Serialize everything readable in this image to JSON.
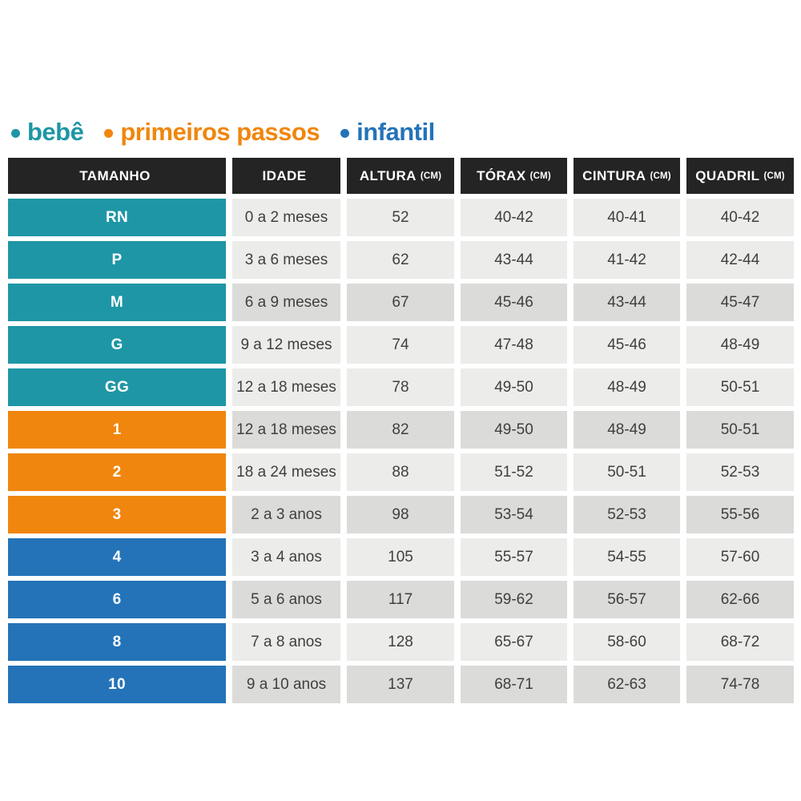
{
  "chart_data": {
    "type": "table",
    "legend": [
      {
        "label": "bebê",
        "group": "bebe"
      },
      {
        "label": "primeiros passos",
        "group": "primeiros_passos"
      },
      {
        "label": "infantil",
        "group": "infantil"
      }
    ],
    "columns": [
      {
        "label": "TAMANHO",
        "unit": ""
      },
      {
        "label": "IDADE",
        "unit": ""
      },
      {
        "label": "ALTURA",
        "unit": "(CM)"
      },
      {
        "label": "TÓRAX",
        "unit": "(CM)"
      },
      {
        "label": "CINTURA",
        "unit": "(CM)"
      },
      {
        "label": "QUADRIL",
        "unit": "(CM)"
      }
    ],
    "rows": [
      {
        "tamanho": "RN",
        "idade": "0 a 2 meses",
        "altura": "52",
        "torax": "40-42",
        "cintura": "40-41",
        "quadril": "40-42",
        "group": "bebe",
        "shade": "light"
      },
      {
        "tamanho": "P",
        "idade": "3 a 6 meses",
        "altura": "62",
        "torax": "43-44",
        "cintura": "41-42",
        "quadril": "42-44",
        "group": "bebe",
        "shade": "light"
      },
      {
        "tamanho": "M",
        "idade": "6 a 9 meses",
        "altura": "67",
        "torax": "45-46",
        "cintura": "43-44",
        "quadril": "45-47",
        "group": "bebe",
        "shade": "dark"
      },
      {
        "tamanho": "G",
        "idade": "9 a 12 meses",
        "altura": "74",
        "torax": "47-48",
        "cintura": "45-46",
        "quadril": "48-49",
        "group": "bebe",
        "shade": "light"
      },
      {
        "tamanho": "GG",
        "idade": "12 a 18 meses",
        "altura": "78",
        "torax": "49-50",
        "cintura": "48-49",
        "quadril": "50-51",
        "group": "bebe",
        "shade": "light"
      },
      {
        "tamanho": "1",
        "idade": "12 a 18 meses",
        "altura": "82",
        "torax": "49-50",
        "cintura": "48-49",
        "quadril": "50-51",
        "group": "primeiros_passos",
        "shade": "dark"
      },
      {
        "tamanho": "2",
        "idade": "18 a 24 meses",
        "altura": "88",
        "torax": "51-52",
        "cintura": "50-51",
        "quadril": "52-53",
        "group": "primeiros_passos",
        "shade": "light"
      },
      {
        "tamanho": "3",
        "idade": "2 a 3 anos",
        "altura": "98",
        "torax": "53-54",
        "cintura": "52-53",
        "quadril": "55-56",
        "group": "primeiros_passos",
        "shade": "dark"
      },
      {
        "tamanho": "4",
        "idade": "3 a 4 anos",
        "altura": "105",
        "torax": "55-57",
        "cintura": "54-55",
        "quadril": "57-60",
        "group": "infantil",
        "shade": "light"
      },
      {
        "tamanho": "6",
        "idade": "5 a 6 anos",
        "altura": "117",
        "torax": "59-62",
        "cintura": "56-57",
        "quadril": "62-66",
        "group": "infantil",
        "shade": "dark"
      },
      {
        "tamanho": "8",
        "idade": "7 a 8 anos",
        "altura": "128",
        "torax": "65-67",
        "cintura": "58-60",
        "quadril": "68-72",
        "group": "infantil",
        "shade": "light"
      },
      {
        "tamanho": "10",
        "idade": "9 a 10 anos",
        "altura": "137",
        "torax": "68-71",
        "cintura": "62-63",
        "quadril": "74-78",
        "group": "infantil",
        "shade": "dark"
      }
    ]
  },
  "colors": {
    "bebe": "#1E96A6",
    "primeiros_passos": "#F0860D",
    "infantil": "#2473B8",
    "header_bg": "#242424",
    "row_light": "#ECECEA",
    "row_dark": "#DBDBD9",
    "text": "#3F3F3F"
  }
}
